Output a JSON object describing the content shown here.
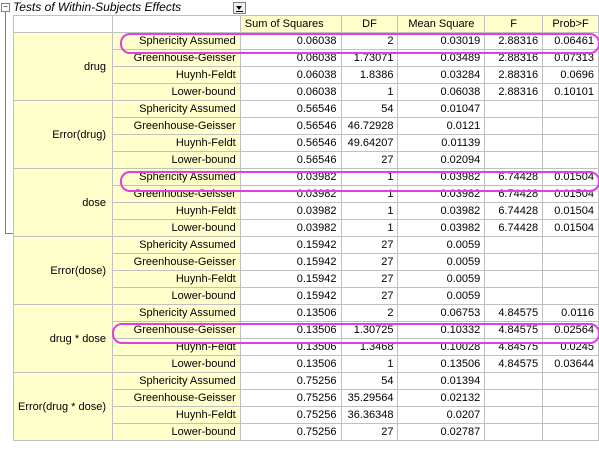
{
  "title": "Tests of Within-Subjects Effects",
  "columns": [
    "Sum of Squares",
    "DF",
    "Mean Square",
    "F",
    "Prob>F"
  ],
  "groups": [
    {
      "name": "drug",
      "rows": [
        {
          "cond": "Sphericity Assumed",
          "vals": [
            "0.06038",
            "2",
            "0.03019",
            "2.88316",
            "0.06461"
          ]
        },
        {
          "cond": "Greenhouse-Geisser",
          "vals": [
            "0.06038",
            "1.73071",
            "0.03489",
            "2.88316",
            "0.07313"
          ]
        },
        {
          "cond": "Huynh-Feldt",
          "vals": [
            "0.06038",
            "1.8386",
            "0.03284",
            "2.88316",
            "0.0696"
          ]
        },
        {
          "cond": "Lower-bound",
          "vals": [
            "0.06038",
            "1",
            "0.06038",
            "2.88316",
            "0.10101"
          ]
        }
      ]
    },
    {
      "name": "Error(drug)",
      "rows": [
        {
          "cond": "Sphericity Assumed",
          "vals": [
            "0.56546",
            "54",
            "0.01047",
            "",
            ""
          ]
        },
        {
          "cond": "Greenhouse-Geisser",
          "vals": [
            "0.56546",
            "46.72928",
            "0.0121",
            "",
            ""
          ]
        },
        {
          "cond": "Huynh-Feldt",
          "vals": [
            "0.56546",
            "49.64207",
            "0.01139",
            "",
            ""
          ]
        },
        {
          "cond": "Lower-bound",
          "vals": [
            "0.56546",
            "27",
            "0.02094",
            "",
            ""
          ]
        }
      ]
    },
    {
      "name": "dose",
      "rows": [
        {
          "cond": "Sphericity Assumed",
          "vals": [
            "0.03982",
            "1",
            "0.03982",
            "6.74428",
            "0.01504"
          ]
        },
        {
          "cond": "Greenhouse-Geisser",
          "vals": [
            "0.03982",
            "1",
            "0.03982",
            "6.74428",
            "0.01504"
          ]
        },
        {
          "cond": "Huynh-Feldt",
          "vals": [
            "0.03982",
            "1",
            "0.03982",
            "6.74428",
            "0.01504"
          ]
        },
        {
          "cond": "Lower-bound",
          "vals": [
            "0.03982",
            "1",
            "0.03982",
            "6.74428",
            "0.01504"
          ]
        }
      ]
    },
    {
      "name": "Error(dose)",
      "rows": [
        {
          "cond": "Sphericity Assumed",
          "vals": [
            "0.15942",
            "27",
            "0.0059",
            "",
            ""
          ]
        },
        {
          "cond": "Greenhouse-Geisser",
          "vals": [
            "0.15942",
            "27",
            "0.0059",
            "",
            ""
          ]
        },
        {
          "cond": "Huynh-Feldt",
          "vals": [
            "0.15942",
            "27",
            "0.0059",
            "",
            ""
          ]
        },
        {
          "cond": "Lower-bound",
          "vals": [
            "0.15942",
            "27",
            "0.0059",
            "",
            ""
          ]
        }
      ]
    },
    {
      "name": "drug * dose",
      "rows": [
        {
          "cond": "Sphericity Assumed",
          "vals": [
            "0.13506",
            "2",
            "0.06753",
            "4.84575",
            "0.0116"
          ]
        },
        {
          "cond": "Greenhouse-Geisser",
          "vals": [
            "0.13506",
            "1.30725",
            "0.10332",
            "4.84575",
            "0.02564"
          ]
        },
        {
          "cond": "Huynh-Feldt",
          "vals": [
            "0.13506",
            "1.3468",
            "0.10028",
            "4.84575",
            "0.0245"
          ]
        },
        {
          "cond": "Lower-bound",
          "vals": [
            "0.13506",
            "1",
            "0.13506",
            "4.84575",
            "0.03644"
          ]
        }
      ]
    },
    {
      "name": "Error(drug * dose)",
      "rows": [
        {
          "cond": "Sphericity Assumed",
          "vals": [
            "0.75256",
            "54",
            "0.01394",
            "",
            ""
          ]
        },
        {
          "cond": "Greenhouse-Geisser",
          "vals": [
            "0.75256",
            "35.29564",
            "0.02132",
            "",
            ""
          ]
        },
        {
          "cond": "Huynh-Feldt",
          "vals": [
            "0.75256",
            "36.36348",
            "0.0207",
            "",
            ""
          ]
        },
        {
          "cond": "Lower-bound",
          "vals": [
            "0.75256",
            "27",
            "0.02787",
            "",
            ""
          ]
        }
      ]
    }
  ],
  "highlight_color": "#e040e0",
  "header_fill": "#ffffcc"
}
